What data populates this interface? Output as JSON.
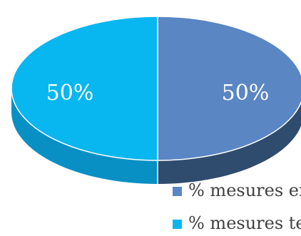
{
  "chart_data": {
    "type": "pie",
    "title": "",
    "categories": [
      "% mesures encore en cours",
      "% mesures terminées"
    ],
    "values": [
      50,
      50
    ],
    "data_labels": [
      "50%",
      "50%"
    ],
    "colors": [
      "#5B86C4",
      "#08B7EF"
    ],
    "side_colors": [
      "#2F4C6E",
      "#0890C4"
    ],
    "style": "3d",
    "legend_position": "bottom-right"
  }
}
